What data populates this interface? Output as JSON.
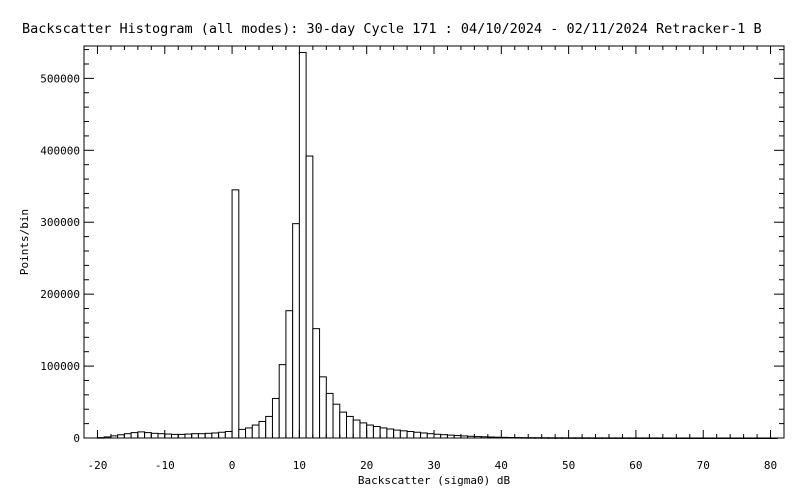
{
  "chart_data": {
    "type": "bar",
    "title": "Backscatter Histogram (all modes): 30-day Cycle 171 : 04/10/2024 - 02/11/2024 Retracker-1 B",
    "xlabel": "Backscatter (sigma0) dB",
    "ylabel": "Points/bin",
    "xlim": [
      -22,
      82
    ],
    "ylim": [
      0,
      545000
    ],
    "x_ticks": [
      -20,
      -10,
      0,
      10,
      20,
      30,
      40,
      50,
      60,
      70,
      80
    ],
    "x_tick_labels": [
      "-20",
      "-10",
      "0",
      "10",
      "20",
      "30",
      "40",
      "50",
      "60",
      "70",
      "80"
    ],
    "y_ticks": [
      0,
      100000,
      200000,
      300000,
      400000,
      500000
    ],
    "y_tick_labels": [
      "0",
      "100000",
      "200000",
      "300000",
      "400000",
      "500000"
    ],
    "grid": false,
    "bin_width": 1,
    "bins": [
      -20,
      -19,
      -18,
      -17,
      -16,
      -15,
      -14,
      -13,
      -12,
      -11,
      -10,
      -9,
      -8,
      -7,
      -6,
      -5,
      -4,
      -3,
      -2,
      -1,
      0,
      1,
      2,
      3,
      4,
      5,
      6,
      7,
      8,
      9,
      10,
      11,
      12,
      13,
      14,
      15,
      16,
      17,
      18,
      19,
      20,
      21,
      22,
      23,
      24,
      25,
      26,
      27,
      28,
      29,
      30,
      31,
      32,
      33,
      34,
      35,
      36,
      37,
      38,
      39,
      40,
      41,
      42,
      43,
      44,
      45,
      46,
      47,
      48,
      49,
      50,
      51,
      52,
      53,
      54,
      55,
      56,
      57,
      58,
      59,
      60,
      61,
      62,
      63,
      64,
      65,
      66,
      67,
      68,
      69,
      70,
      71,
      72,
      73,
      74,
      75,
      76,
      77,
      78,
      79,
      80
    ],
    "values": [
      500,
      1500,
      3000,
      4500,
      6000,
      7500,
      8500,
      7500,
      6500,
      6000,
      5500,
      5000,
      5000,
      5500,
      6000,
      6000,
      6500,
      7000,
      8000,
      9000,
      345000,
      12000,
      14000,
      18000,
      23000,
      30000,
      55000,
      102000,
      177000,
      298000,
      536000,
      392000,
      152000,
      85000,
      62000,
      47000,
      36000,
      30000,
      25000,
      21000,
      18000,
      16000,
      14000,
      12500,
      11000,
      10000,
      9000,
      8000,
      7000,
      6000,
      5200,
      4600,
      4000,
      3400,
      2900,
      2400,
      2000,
      1700,
      1400,
      1100,
      900,
      700,
      600,
      500,
      450,
      400,
      350,
      300,
      280,
      260,
      240,
      220,
      200,
      180,
      160,
      150,
      140,
      130,
      120,
      110,
      100,
      90,
      80,
      70,
      60,
      55,
      50,
      45,
      40,
      35,
      30,
      28,
      26,
      24,
      22,
      20,
      18,
      16,
      14,
      12,
      10
    ]
  }
}
